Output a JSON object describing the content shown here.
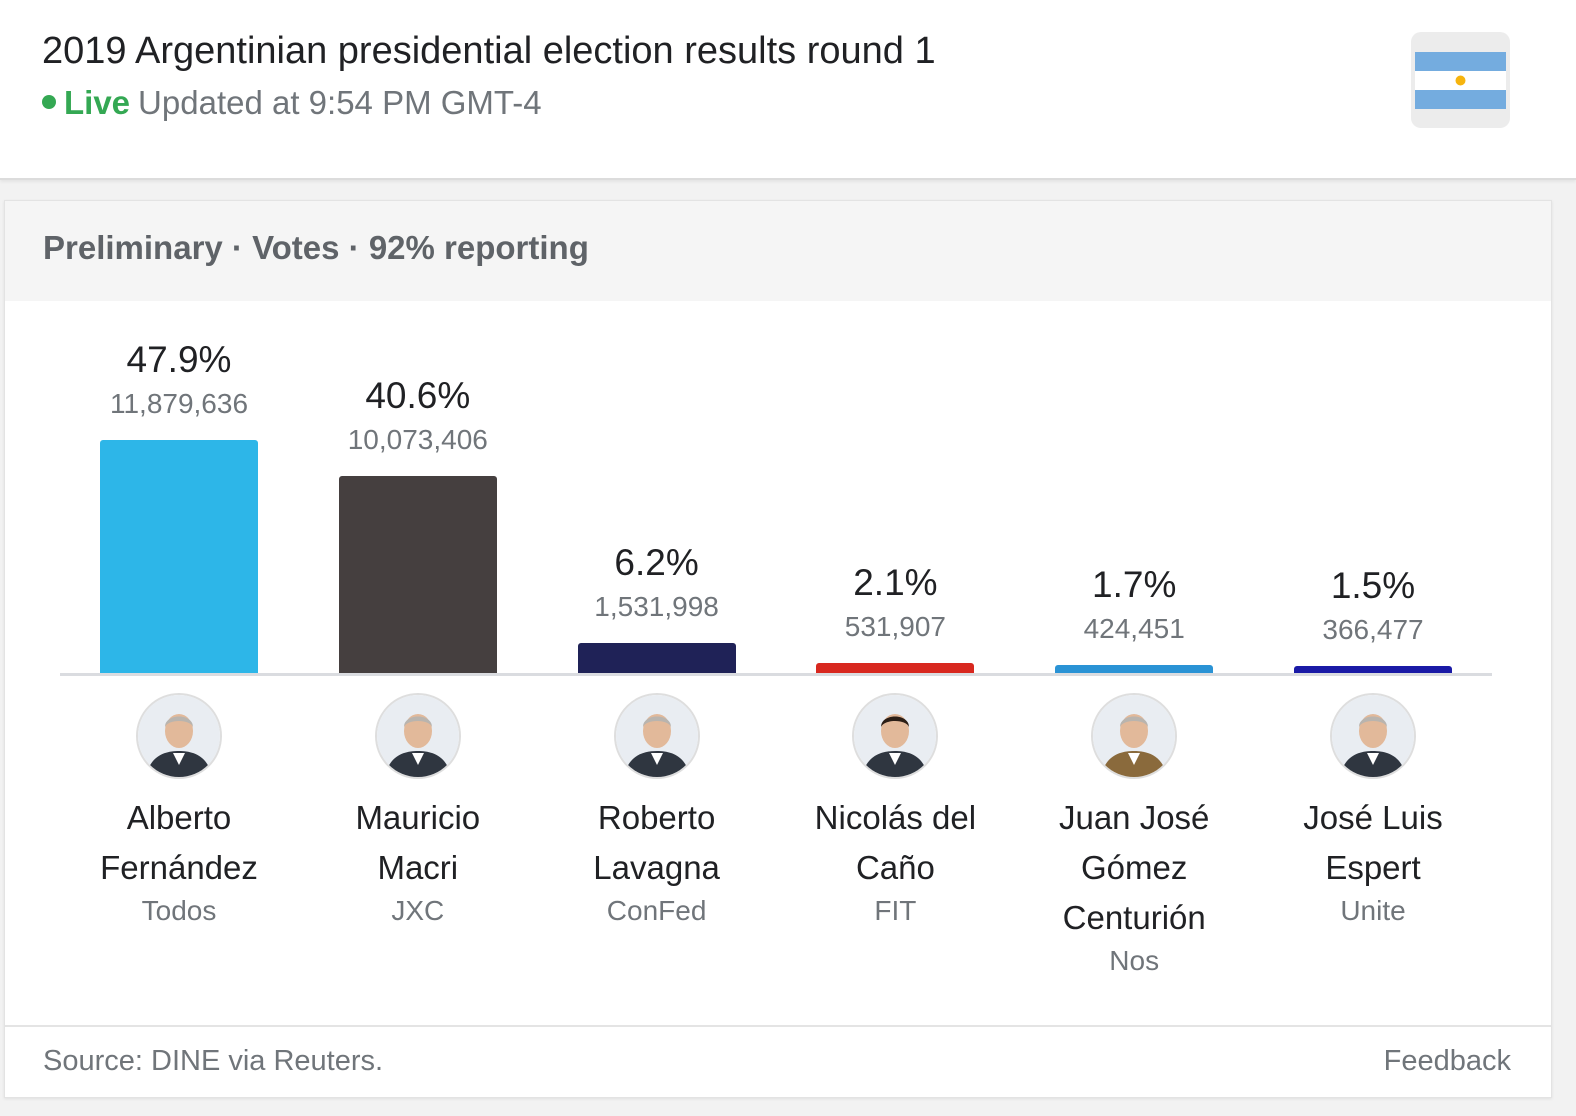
{
  "header": {
    "title": "2019 Argentinian presidential election results round 1",
    "live_label": "Live",
    "updated_text": "Updated at 9:54 PM GMT-4",
    "flag_icon": "argentina-flag-icon"
  },
  "card": {
    "subheader": "Preliminary · Votes · 92% reporting",
    "source": "Source: DINE via Reuters.",
    "feedback_label": "Feedback"
  },
  "chart_data": {
    "type": "bar",
    "title": "",
    "xlabel": "",
    "ylabel": "",
    "ylim": [
      0,
      47.9
    ],
    "grid": false,
    "categories": [
      "Alberto Fernández",
      "Mauricio Macri",
      "Roberto Lavagna",
      "Nicolás del Caño",
      "Juan José Gómez Centurión",
      "José Luis Espert"
    ],
    "name_lines": [
      [
        "Alberto",
        "Fernández"
      ],
      [
        "Mauricio",
        "Macri"
      ],
      [
        "Roberto",
        "Lavagna"
      ],
      [
        "Nicolás del",
        "Caño"
      ],
      [
        "Juan José",
        "Gómez",
        "Centurión"
      ],
      [
        "José Luis",
        "Espert"
      ]
    ],
    "parties": [
      "Todos",
      "JXC",
      "ConFed",
      "FIT",
      "Nos",
      "Unite"
    ],
    "values": [
      47.9,
      40.6,
      6.2,
      2.1,
      1.7,
      1.5
    ],
    "value_labels": [
      "47.9%",
      "40.6%",
      "6.2%",
      "2.1%",
      "1.7%",
      "1.5%"
    ],
    "votes": [
      "11,879,636",
      "10,073,406",
      "1,531,998",
      "531,907",
      "424,451",
      "366,477"
    ],
    "colors": [
      "#2db6e8",
      "#453f3f",
      "#1f2257",
      "#d8281f",
      "#2a93d5",
      "#1a1aa6"
    ],
    "avatar_icons": [
      "candidate-photo-icon",
      "candidate-photo-icon",
      "candidate-photo-icon",
      "candidate-photo-icon",
      "candidate-photo-icon",
      "candidate-photo-icon"
    ]
  }
}
